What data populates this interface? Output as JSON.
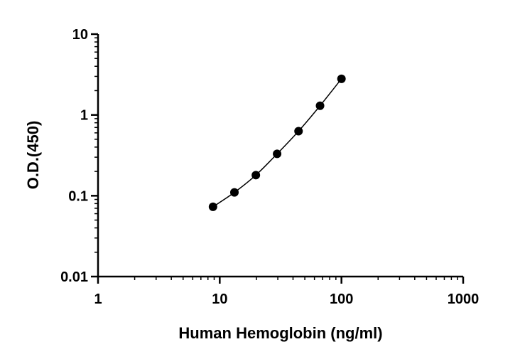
{
  "chart_data": {
    "type": "line",
    "markers": true,
    "color": "#000000",
    "xlabel": "Human Hemoglobin (ng/ml)",
    "ylabel": "O.D.(450)",
    "x": [
      8.8,
      13.2,
      19.8,
      29.6,
      44.4,
      66.7,
      100
    ],
    "series": [
      {
        "values": [
          0.073,
          0.11,
          0.18,
          0.33,
          0.63,
          1.3,
          2.8
        ]
      }
    ],
    "xscale": "log",
    "yscale": "log",
    "xlim": [
      1,
      1000
    ],
    "ylim": [
      0.01,
      10
    ],
    "xticks": [
      1,
      10,
      100,
      1000
    ],
    "yticks": [
      0.01,
      0.1,
      1,
      10
    ]
  }
}
